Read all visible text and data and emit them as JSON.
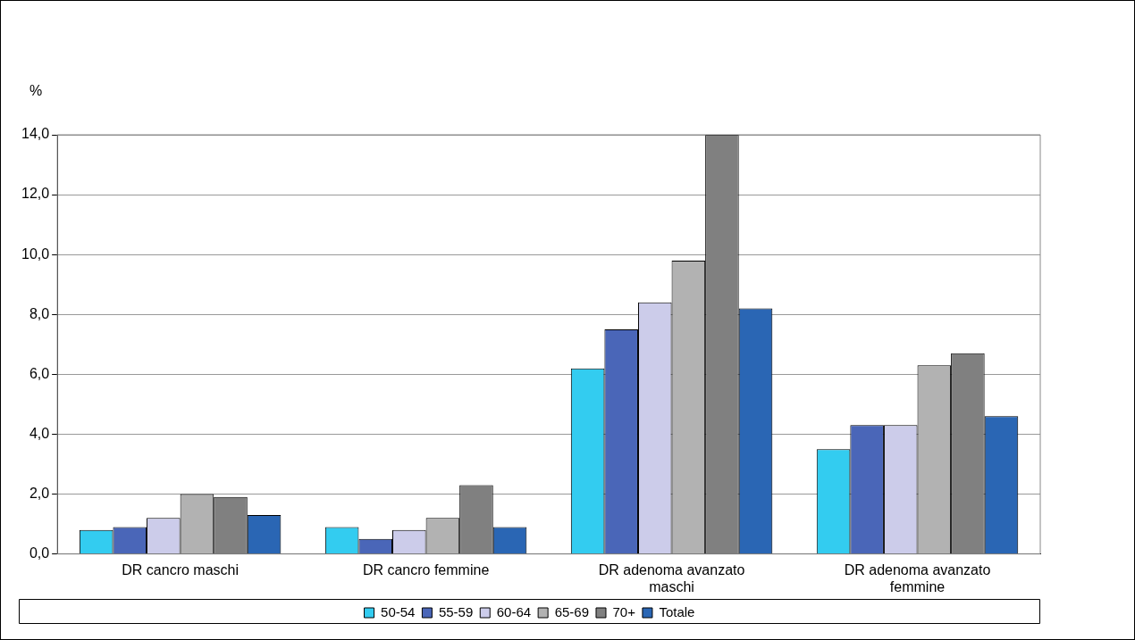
{
  "chart_data": {
    "type": "bar",
    "ylabel": "%",
    "categories": [
      "DR cancro maschi",
      "DR cancro femmine",
      "DR adenoma avanzato maschi",
      "DR adenoma avanzato femmine"
    ],
    "series": [
      {
        "name": "50-54",
        "color": "#33ccf0",
        "values": [
          0.8,
          0.9,
          6.2,
          3.5
        ]
      },
      {
        "name": "55-59",
        "color": "#4a66b8",
        "values": [
          0.9,
          0.5,
          7.5,
          4.3
        ]
      },
      {
        "name": "60-64",
        "color": "#ccccea",
        "values": [
          1.2,
          0.8,
          8.4,
          4.3
        ]
      },
      {
        "name": "65-69",
        "color": "#b2b2b2",
        "values": [
          2.0,
          1.2,
          9.8,
          6.3
        ]
      },
      {
        "name": "70+",
        "color": "#808080",
        "values": [
          1.9,
          2.3,
          14.0,
          6.7
        ]
      },
      {
        "name": "Totale",
        "color": "#2a66b4",
        "values": [
          1.3,
          0.9,
          8.2,
          4.6
        ]
      }
    ],
    "ylim": [
      0,
      14
    ],
    "yticks": [
      {
        "value": 0,
        "label": "0,0"
      },
      {
        "value": 2,
        "label": "2,0"
      },
      {
        "value": 4,
        "label": "4,0"
      },
      {
        "value": 6,
        "label": "6,0"
      },
      {
        "value": 8,
        "label": "8,0"
      },
      {
        "value": 10,
        "label": "10,0"
      },
      {
        "value": 12,
        "label": "12,0"
      },
      {
        "value": 14,
        "label": "14,0"
      }
    ],
    "grid": "y",
    "legend": "bottom"
  }
}
